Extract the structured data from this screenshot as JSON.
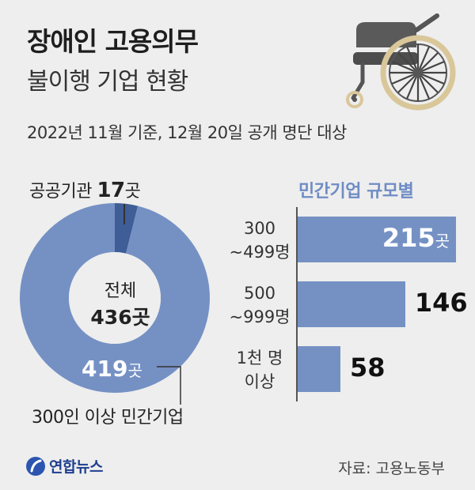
{
  "header": {
    "title_line1": "장애인 고용의무",
    "title_line2": "불이행 기업 현황",
    "subtitle": "2022년 11월 기준, 12월 20일 공개 명단 대상"
  },
  "colors": {
    "background": "#eeeeee",
    "accent": "#7591c4",
    "accent_dark": "#3f5d96",
    "section_title": "#6f8cc4"
  },
  "icons": {
    "illustration": "wheelchair-icon",
    "logo": "yonhap-logo-icon"
  },
  "chart_data": [
    {
      "type": "pie",
      "variant": "donut",
      "center_label": "전체",
      "center_value": "436곳",
      "total": 436,
      "slices": [
        {
          "label": "공공기관",
          "value": 17,
          "value_text": "17",
          "unit": "곳",
          "color": "#3f5d96"
        },
        {
          "label": "300인 이상 민간기업",
          "value": 419,
          "value_text": "419",
          "unit": "곳",
          "color": "#7591c4"
        }
      ]
    },
    {
      "type": "bar",
      "orientation": "horizontal",
      "title": "민간기업 규모별",
      "categories": [
        {
          "line1": "300",
          "line2": "~499명"
        },
        {
          "line1": "500",
          "line2": "~999명"
        },
        {
          "line1": "1천 명",
          "line2": "이상"
        }
      ],
      "values": [
        215,
        146,
        58
      ],
      "value_labels": [
        "215",
        "146",
        "58"
      ],
      "unit_labels": [
        "곳",
        "",
        ""
      ],
      "xlim": [
        0,
        215
      ]
    }
  ],
  "footer": {
    "logo_text": "연합뉴스",
    "source": "자료: 고용노동부"
  }
}
